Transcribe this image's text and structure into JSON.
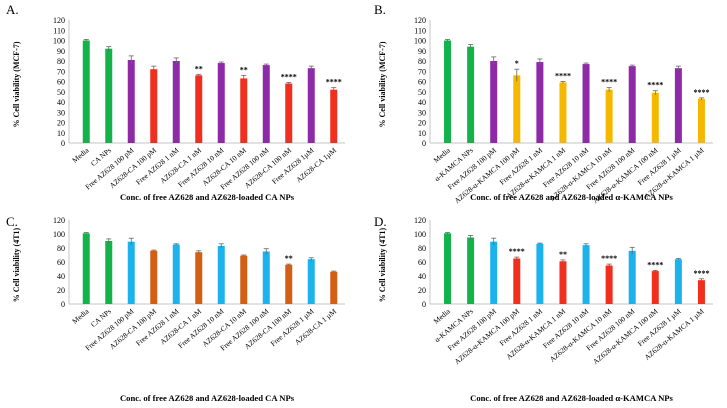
{
  "colors": {
    "green": "#13b24a",
    "purple": "#8e2aa8",
    "red": "#f02f1f",
    "yellow": "#f5b800",
    "blue": "#1cb3ec",
    "orange": "#d35f14",
    "axis": "#c6c6c6",
    "error": "#666666"
  },
  "chart_data": [
    {
      "type": "bar",
      "panel": "A.",
      "ylabel": "% Cell viability (MCF-7)",
      "xlabel": "Conc. of free AZ628 and AZ628-loaded CA NPs",
      "ylim": [
        0,
        120
      ],
      "yticks": [
        "0",
        "10",
        "20",
        "30",
        "40",
        "50",
        "60",
        "70",
        "80",
        "90",
        "100",
        "110",
        "120"
      ],
      "categories": [
        "Media",
        "CA NPs",
        "Free AZ628 100 pM",
        "AZ628-CA 100 pM",
        "Free AZ628 1 nM",
        "AZ628-CA 1 nM",
        "Free AZ628 10 nM",
        "AZ628-CA 10 nM",
        "Free AZ628 100 nM",
        "AZ628-CA 100 nM",
        "Free AZ628 1µM",
        "AZ628-CA 1µM"
      ],
      "values": [
        100,
        92,
        81,
        72,
        80,
        66,
        78,
        63,
        76,
        58,
        73,
        52
      ],
      "errors": [
        1,
        2,
        4,
        3,
        3,
        1,
        1,
        3,
        1,
        1,
        2,
        2
      ],
      "bar_colors": [
        "green",
        "green",
        "purple",
        "red",
        "purple",
        "red",
        "purple",
        "red",
        "purple",
        "red",
        "purple",
        "red"
      ],
      "annotations": [
        "",
        "",
        "",
        "",
        "",
        "**",
        "",
        "**",
        "",
        "****",
        "",
        "****"
      ]
    },
    {
      "type": "bar",
      "panel": "B.",
      "ylabel": "% Cell viability (MCF-7)",
      "xlabel": "Conc. of free AZ628 and AZ628-loaded α-KAMCA NPs",
      "ylim": [
        0,
        120
      ],
      "yticks": [
        "0",
        "10",
        "20",
        "30",
        "40",
        "50",
        "60",
        "70",
        "80",
        "90",
        "100",
        "110",
        "120"
      ],
      "categories": [
        "Media",
        "α-KAMCA NPs",
        "Free AZ628 100 pM",
        "AZ628-α-KAMCA 100 pM",
        "Free AZ628 1 nM",
        "AZ628-α-KAMCA 1 nM",
        "Free AZ628 10 nM",
        "AZ628-α-KAMCA 10 nM",
        "Free AZ628 100 nM",
        "AZ628-α-KAMCA 100 nM",
        "Free AZ628 1 µM",
        "AZ628-α-KAMCA 1 µM"
      ],
      "values": [
        100,
        94,
        80,
        66,
        79,
        59,
        77,
        52,
        75,
        49,
        73,
        43
      ],
      "errors": [
        1,
        2,
        4,
        6,
        3,
        1,
        1,
        2,
        1,
        2,
        2,
        1
      ],
      "bar_colors": [
        "green",
        "green",
        "purple",
        "yellow",
        "purple",
        "yellow",
        "purple",
        "yellow",
        "purple",
        "yellow",
        "purple",
        "yellow"
      ],
      "annotations": [
        "",
        "",
        "",
        "*",
        "",
        "****",
        "",
        "****",
        "",
        "****",
        "",
        "****"
      ]
    },
    {
      "type": "bar",
      "panel": "C.",
      "ylabel": "% Cell viability (4T1)",
      "xlabel": "Conc. of free AZ628 and AZ628-loaded CA NPs",
      "ylim": [
        0,
        120
      ],
      "yticks": [
        "0",
        "20",
        "40",
        "60",
        "80",
        "100",
        "120"
      ],
      "categories": [
        "Media",
        "CA NPs",
        "Free AZ628 100 pM",
        "AZ628-CA 100 pM",
        "Free AZ628 1 nM",
        "AZ628-CA 1 nM",
        "Free AZ628 10 nM",
        "AZ628-CA 10 nM",
        "Free AZ628 100 nM",
        "AZ628-CA 100 nM",
        "Free AZ628 1 µM",
        "AZ628-CA 1 µM"
      ],
      "values": [
        101,
        90,
        89,
        76,
        85,
        74,
        83,
        69,
        75,
        56,
        64,
        46
      ],
      "errors": [
        1,
        3,
        5,
        1,
        1,
        2,
        3,
        1,
        4,
        1,
        2,
        1
      ],
      "bar_colors": [
        "green",
        "green",
        "blue",
        "orange",
        "blue",
        "orange",
        "blue",
        "orange",
        "blue",
        "orange",
        "blue",
        "orange"
      ],
      "annotations": [
        "",
        "",
        "",
        "",
        "",
        "",
        "",
        "",
        "",
        "**",
        "",
        ""
      ]
    },
    {
      "type": "bar",
      "panel": "D.",
      "ylabel": "% Cell viability (4T1)",
      "xlabel": "Conc. of free AZ628 and AZ628-loaded α-KAMCA NPs",
      "ylim": [
        0,
        120
      ],
      "yticks": [
        "0",
        "20",
        "40",
        "60",
        "80",
        "100",
        "120"
      ],
      "categories": [
        "Media",
        "α-KAMCA NPs",
        "Free AZ628 100 pM",
        "AZ628-α-KAMCA 100 pM",
        "Free AZ628 1 nM",
        "AZ628-α-KAMCA 1 nM",
        "Free AZ628 10 nM",
        "AZ628-α-KAMCA 10 nM",
        "Free AZ628 100 nM",
        "AZ628-α-KAMCA 100 nM",
        "Free AZ628 1 µM",
        "AZ628-α-KAMCA 1 µM"
      ],
      "values": [
        101,
        95,
        89,
        65,
        86,
        61,
        84,
        55,
        76,
        47,
        64,
        34
      ],
      "errors": [
        1,
        3,
        5,
        2,
        1,
        2,
        2,
        2,
        5,
        1,
        1,
        2
      ],
      "bar_colors": [
        "green",
        "green",
        "blue",
        "red",
        "blue",
        "red",
        "blue",
        "red",
        "blue",
        "red",
        "blue",
        "red"
      ],
      "annotations": [
        "",
        "",
        "",
        "****",
        "",
        "**",
        "",
        "****",
        "",
        "****",
        "",
        "****"
      ]
    }
  ]
}
